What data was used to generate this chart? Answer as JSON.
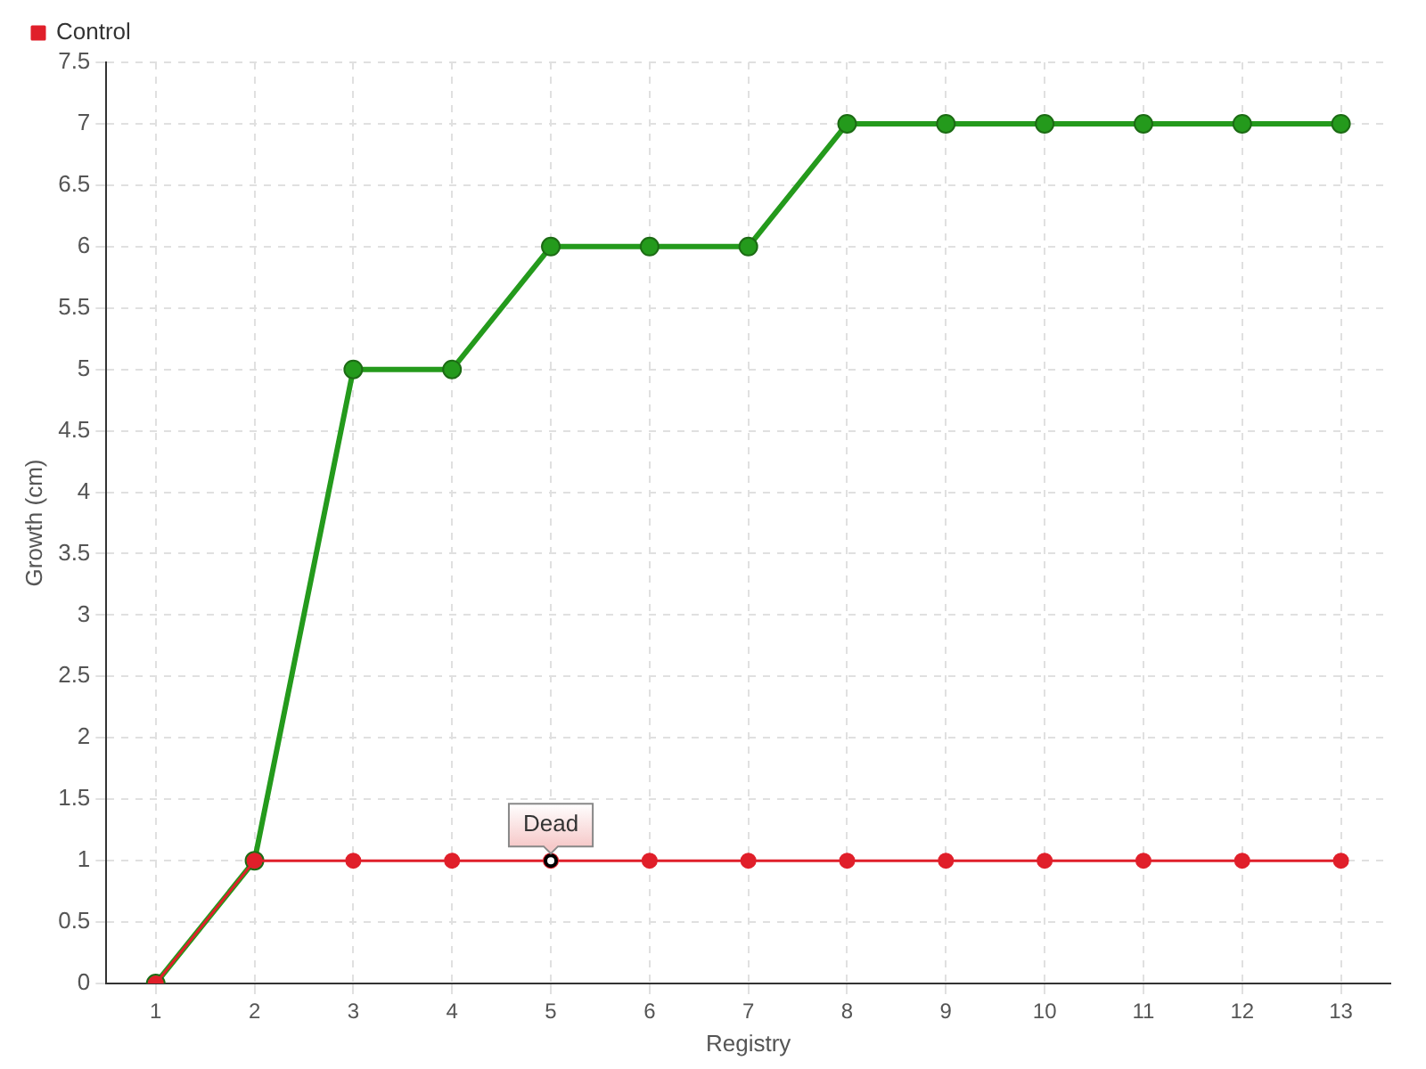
{
  "chart_data": {
    "type": "line",
    "xlabel": "Registry",
    "ylabel": "Growth (cm)",
    "x": [
      1,
      2,
      3,
      4,
      5,
      6,
      7,
      8,
      9,
      10,
      11,
      12,
      13
    ],
    "series": [
      {
        "color": "#249a1c",
        "values": [
          0,
          1,
          5,
          5,
          6,
          6,
          6,
          7,
          7,
          7,
          7,
          7,
          7
        ]
      },
      {
        "name": "Control",
        "color": "#e01f2a",
        "values": [
          0,
          1,
          1,
          1,
          1,
          1,
          1,
          1,
          1,
          1,
          1,
          1,
          1
        ]
      }
    ],
    "xlim": [
      0.5,
      13.5
    ],
    "xticks": [
      1,
      2,
      3,
      4,
      5,
      6,
      7,
      8,
      9,
      10,
      11,
      12,
      13
    ],
    "ylim": [
      0,
      7.5
    ],
    "yticks": [
      0,
      0.5,
      1,
      1.5,
      2,
      2.5,
      3,
      3.5,
      4,
      4.5,
      5,
      5.5,
      6,
      6.5,
      7,
      7.5
    ],
    "grid": true,
    "legend": "top left",
    "marker": "circle",
    "line_style": "solid",
    "annotations": [
      {
        "text": "Dead",
        "x": 5,
        "y": 1
      }
    ]
  }
}
